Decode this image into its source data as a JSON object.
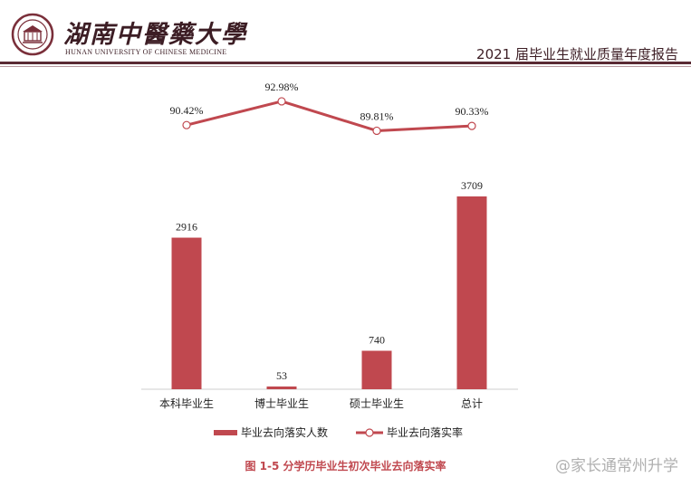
{
  "header": {
    "university_cn": "湖南中醫藥大學",
    "university_en": "HUNAN UNIVERSITY OF CHINESE MEDICINE",
    "report_title": "2021 届毕业生就业质量年度报告"
  },
  "chart_data": {
    "type": "bar",
    "title": "",
    "categories": [
      "本科毕业生",
      "博士毕业生",
      "硕士毕业生",
      "总计"
    ],
    "series": [
      {
        "name": "毕业去向落实人数",
        "type": "bar",
        "values": [
          2916,
          53,
          740,
          3709
        ],
        "labels": [
          "2916",
          "53",
          "740",
          "3709"
        ],
        "color": "#c0484f"
      },
      {
        "name": "毕业去向落实率",
        "type": "line",
        "values": [
          90.42,
          92.98,
          89.81,
          90.33
        ],
        "labels": [
          "90.42%",
          "92.98%",
          "89.81%",
          "90.33%"
        ],
        "color": "#c0484f"
      }
    ],
    "grid": false,
    "legend": "bottom"
  },
  "caption": "图 1-5 分学历毕业生初次毕业去向落实率",
  "watermark": "@家长通常州升学"
}
